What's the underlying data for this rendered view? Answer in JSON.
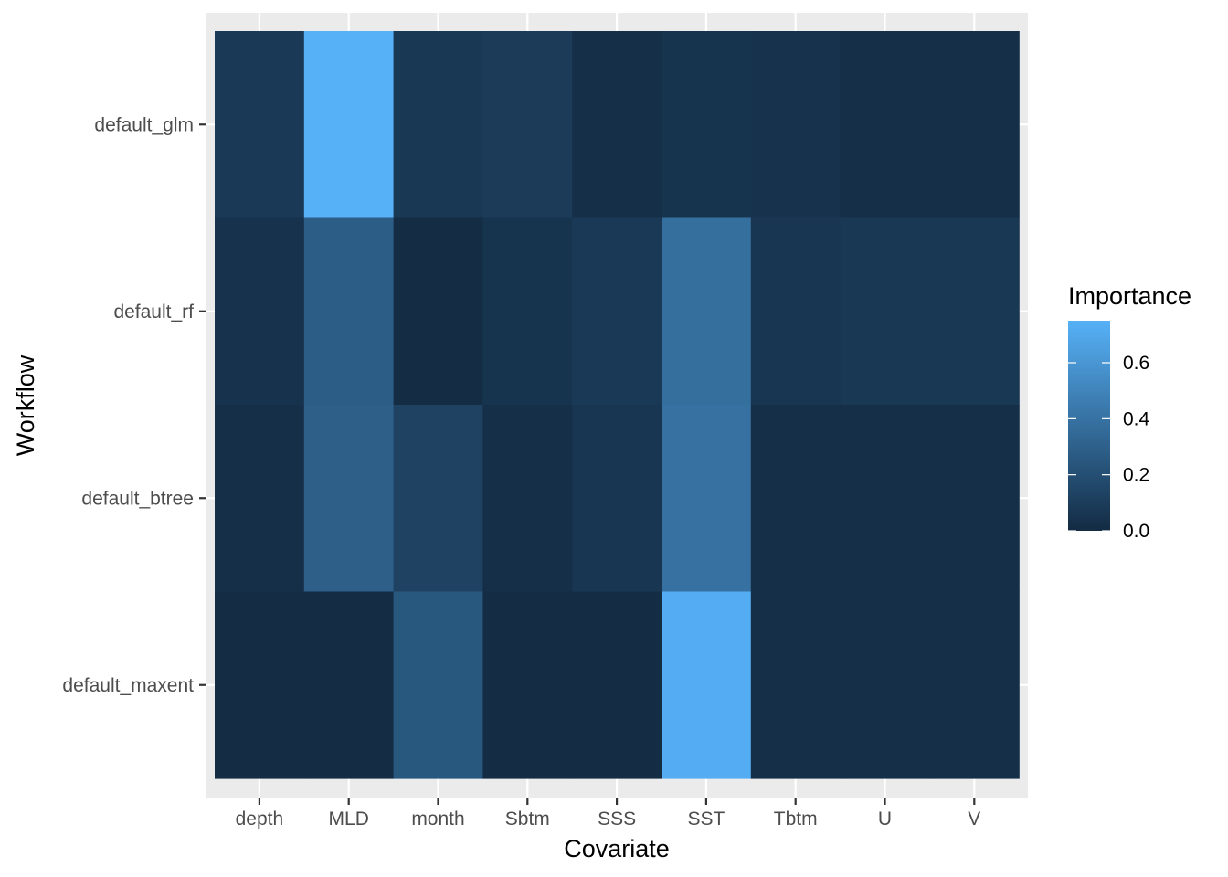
{
  "chart_data": {
    "type": "heatmap",
    "xlabel": "Covariate",
    "ylabel": "Workflow",
    "x": [
      "depth",
      "MLD",
      "month",
      "Sbtm",
      "SSS",
      "SST",
      "Tbtm",
      "U",
      "V"
    ],
    "y": [
      "default_glm",
      "default_rf",
      "default_btree",
      "default_maxent"
    ],
    "values": [
      [
        0.08,
        0.75,
        0.07,
        0.09,
        0.02,
        0.05,
        0.04,
        0.02,
        0.02
      ],
      [
        0.04,
        0.28,
        0.01,
        0.05,
        0.08,
        0.38,
        0.06,
        0.07,
        0.07
      ],
      [
        0.02,
        0.29,
        0.13,
        0.02,
        0.06,
        0.39,
        0.02,
        0.02,
        0.02
      ],
      [
        0.01,
        0.01,
        0.25,
        0.01,
        0.01,
        0.73,
        0.02,
        0.02,
        0.02
      ]
    ],
    "legend": {
      "title": "Importance",
      "ticks": [
        "0.0",
        "0.2",
        "0.4",
        "0.6"
      ],
      "tick_values": [
        0,
        0.2,
        0.4,
        0.6
      ],
      "range": [
        0,
        0.75
      ],
      "low_color": "#132B43",
      "high_color": "#56B1F7",
      "placement": "right"
    },
    "grid": true,
    "panel_background": "#EBEBEB"
  }
}
